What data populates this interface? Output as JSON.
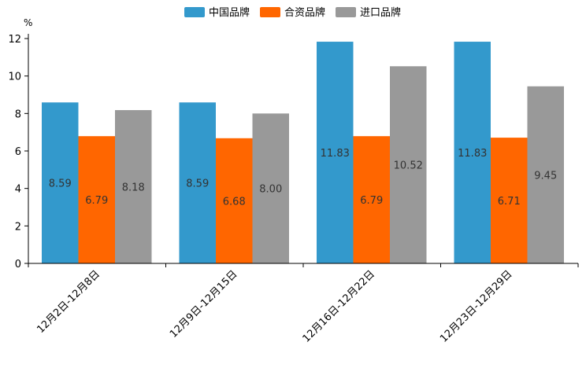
{
  "chart_data": {
    "type": "bar",
    "title": "",
    "xlabel": "",
    "ylabel": "%",
    "ylim": [
      0,
      12
    ],
    "yticks": [
      0,
      2,
      4,
      6,
      8,
      10,
      12
    ],
    "grid": false,
    "legend_position": "top-center",
    "categories": [
      "12月2日-12月8日",
      "12月9日-12月15日",
      "12月16日-12月22日",
      "12月23日-12月29日"
    ],
    "series": [
      {
        "name": "中国品牌",
        "color": "#3399cc",
        "values": [
          8.59,
          8.59,
          11.83,
          11.83
        ],
        "labels": [
          "8.59",
          "8.59",
          "11.83",
          "11.83"
        ]
      },
      {
        "name": "合资品牌",
        "color": "#ff6600",
        "values": [
          6.79,
          6.68,
          6.79,
          6.71
        ],
        "labels": [
          "6.79",
          "6.68",
          "6.79",
          "6.71"
        ]
      },
      {
        "name": "进口品牌",
        "color": "#999999",
        "values": [
          8.18,
          8.0,
          10.52,
          9.45
        ],
        "labels": [
          "8.18",
          "8.00",
          "10.52",
          "9.45"
        ]
      }
    ]
  }
}
